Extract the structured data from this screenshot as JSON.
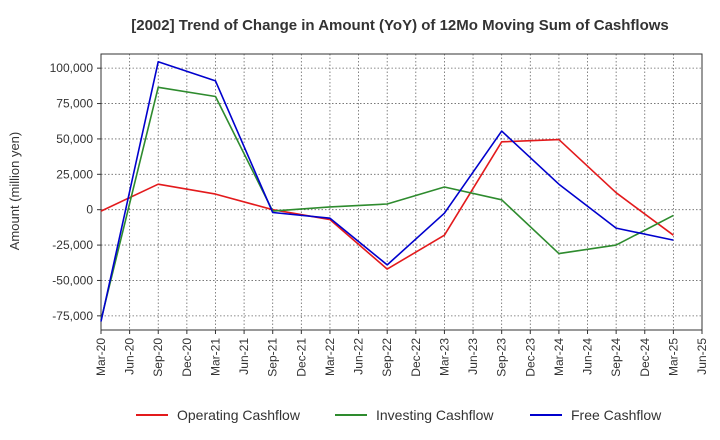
{
  "chart_data": {
    "type": "line",
    "title": "[2002]  Trend of Change in Amount (YoY) of 12Mo Moving Sum of Cashflows",
    "ylabel": "Amount (million yen)",
    "xlabel": "",
    "ylim": [
      -85000,
      110000
    ],
    "yticks": [
      -75000,
      -50000,
      -25000,
      0,
      25000,
      50000,
      75000,
      100000
    ],
    "ytick_labels": [
      "-75,000",
      "-50,000",
      "-25,000",
      "0",
      "25,000",
      "50,000",
      "75,000",
      "100,000"
    ],
    "categories": [
      "Mar-20",
      "Jun-20",
      "Sep-20",
      "Dec-20",
      "Mar-21",
      "Jun-21",
      "Sep-21",
      "Dec-21",
      "Mar-22",
      "Jun-22",
      "Sep-22",
      "Dec-22",
      "Mar-23",
      "Jun-23",
      "Sep-23",
      "Dec-23",
      "Mar-24",
      "Jun-24",
      "Sep-24",
      "Dec-24",
      "Mar-25",
      "Jun-25"
    ],
    "grid": true,
    "legend_position": "bottom",
    "series": [
      {
        "name": "Operating Cashflow",
        "color": "#e31a1c",
        "values": [
          -1000,
          null,
          18000,
          null,
          11000,
          null,
          0,
          null,
          -7000,
          null,
          -42000,
          null,
          -18000,
          null,
          48000,
          null,
          49500,
          null,
          12000,
          null,
          -18000,
          null
        ]
      },
      {
        "name": "Investing Cashflow",
        "color": "#2e8b2e",
        "values": [
          -78000,
          null,
          86500,
          null,
          80000,
          null,
          -1000,
          null,
          2000,
          null,
          4000,
          null,
          16000,
          null,
          7000,
          null,
          -31000,
          null,
          -25000,
          null,
          -4000,
          null
        ]
      },
      {
        "name": "Free Cashflow",
        "color": "#0000cd",
        "values": [
          -79000,
          null,
          104500,
          null,
          91000,
          null,
          -2000,
          null,
          -6000,
          null,
          -39000,
          null,
          -2500,
          null,
          55500,
          null,
          18000,
          null,
          -13000,
          null,
          -21500,
          null
        ]
      }
    ]
  }
}
